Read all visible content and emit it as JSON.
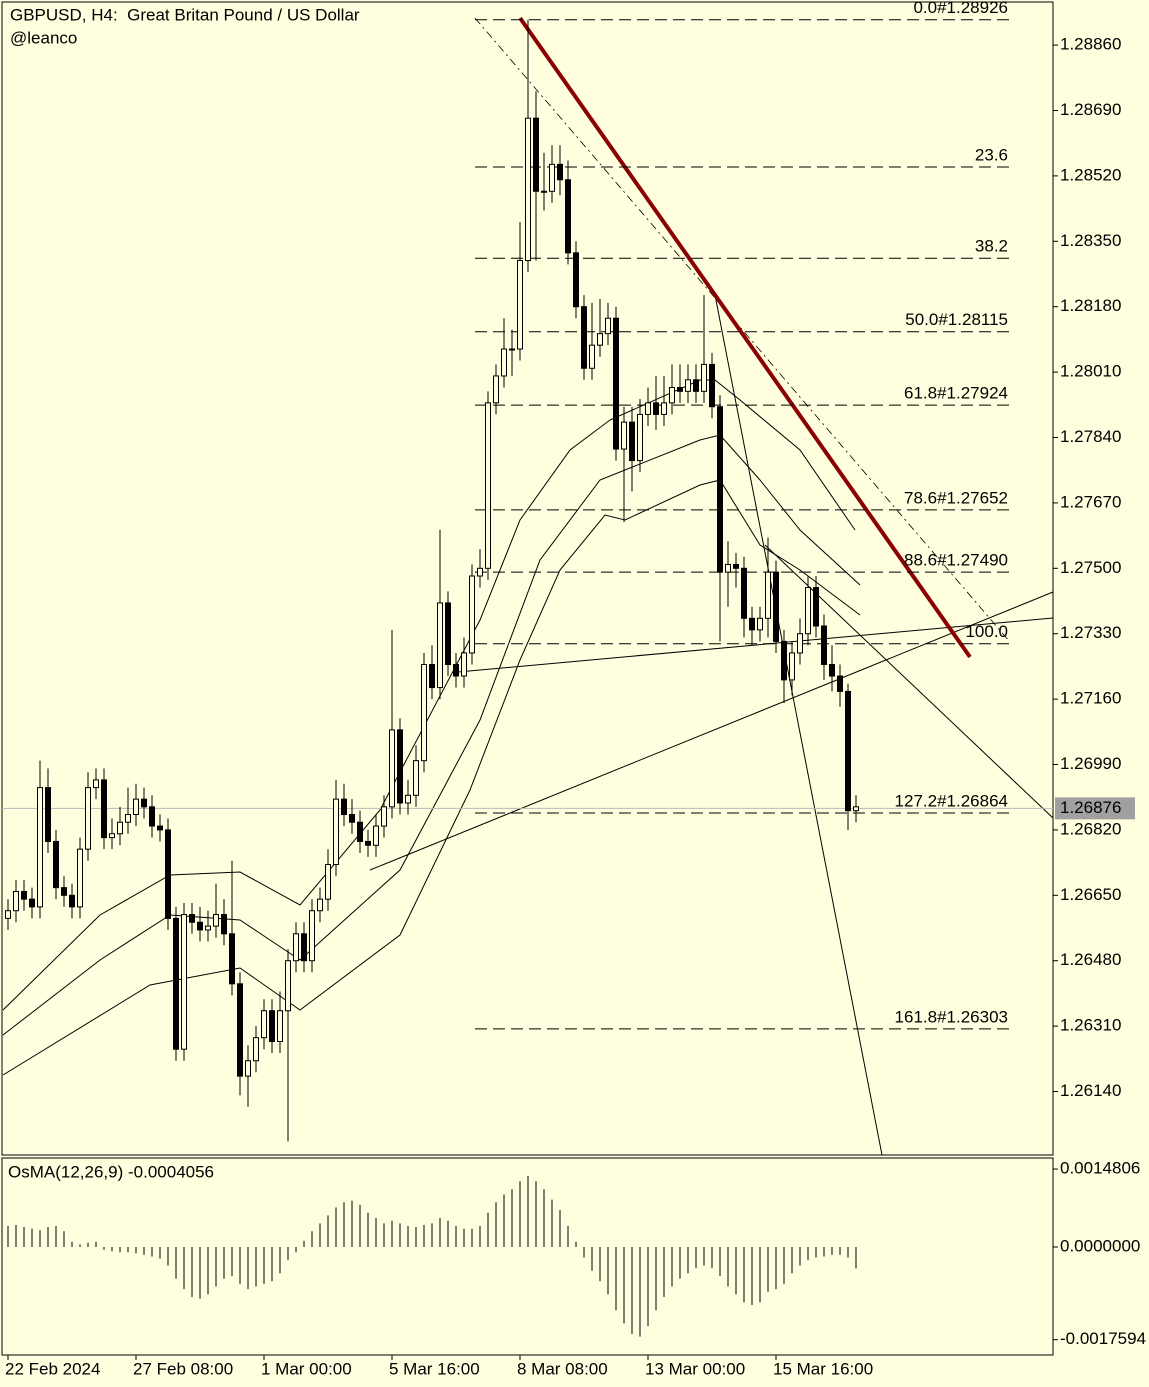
{
  "chart_data": [
    {
      "type": "candlestick",
      "title": "GBPUSD, H4:  Great Britan Pound / US Dollar",
      "subtitle": "@leanco",
      "color": "#000000",
      "background": "#ffffe0",
      "xlim": [
        -1,
        130
      ],
      "xticks": [
        {
          "value": 0,
          "label": "22 Feb 2024"
        },
        {
          "value": 16,
          "label": "27 Feb 08:00"
        },
        {
          "value": 32,
          "label": "1 Mar 00:00"
        },
        {
          "value": 48,
          "label": "5 Mar 16:00"
        },
        {
          "value": 64,
          "label": "8 Mar 08:00"
        },
        {
          "value": 80,
          "label": "13 Mar 00:00"
        },
        {
          "value": 96,
          "label": "15 Mar 16:00"
        }
      ],
      "ylim": [
        1.25975,
        1.28972
      ],
      "yticks": [
        {
          "value": 1.2886,
          "label": "1.28860"
        },
        {
          "value": 1.2869,
          "label": "1.28690"
        },
        {
          "value": 1.2852,
          "label": "1.28520"
        },
        {
          "value": 1.2835,
          "label": "1.28350"
        },
        {
          "value": 1.2818,
          "label": "1.28180"
        },
        {
          "value": 1.2801,
          "label": "1.28010"
        },
        {
          "value": 1.2784,
          "label": "1.27840"
        },
        {
          "value": 1.2767,
          "label": "1.27670"
        },
        {
          "value": 1.275,
          "label": "1.27500"
        },
        {
          "value": 1.2733,
          "label": "1.27330"
        },
        {
          "value": 1.2716,
          "label": "1.27160"
        },
        {
          "value": 1.2699,
          "label": "1.26990"
        },
        {
          "value": 1.2682,
          "label": "1.26820"
        },
        {
          "value": 1.2665,
          "label": "1.26650"
        },
        {
          "value": 1.2648,
          "label": "1.26480"
        },
        {
          "value": 1.2631,
          "label": "1.26310"
        },
        {
          "value": 1.2614,
          "label": "1.26140"
        }
      ],
      "bid": 1.26876,
      "open": [
        1.2659,
        1.2661,
        1.2666,
        1.2664,
        1.2662,
        1.2693,
        1.2679,
        1.2667,
        1.2665,
        1.2662,
        1.2677,
        1.2693,
        1.2695,
        1.268,
        1.2681,
        1.2684,
        1.2686,
        1.269,
        1.2688,
        1.2683,
        1.2682,
        1.2659,
        1.2625,
        1.266,
        1.2658,
        1.2656,
        1.2657,
        1.266,
        1.2655,
        1.2642,
        1.2618,
        1.2622,
        1.2628,
        1.2635,
        1.2627,
        1.2635,
        1.2648,
        1.2655,
        1.2648,
        1.2661,
        1.2664,
        1.2673,
        1.269,
        1.2686,
        1.2684,
        1.2679,
        1.2678,
        1.2683,
        1.2688,
        1.2708,
        1.2689,
        1.2691,
        1.27,
        1.2725,
        1.2719,
        1.2741,
        1.2725,
        1.2722,
        1.2728,
        1.2748,
        1.275,
        1.2793,
        1.28,
        1.2807,
        1.2807,
        1.283,
        1.2867,
        1.2848,
        1.2848,
        1.2855,
        1.2851,
        1.2832,
        1.2818,
        1.2802,
        1.2808,
        1.2811,
        1.2815,
        1.2781,
        1.2788,
        1.2778,
        1.279,
        1.2793,
        1.279,
        1.2793,
        1.2797,
        1.2796,
        1.2799,
        1.2796,
        1.2803,
        1.2792,
        1.2749,
        1.2751,
        1.275,
        1.2737,
        1.2734,
        1.2737,
        1.2749,
        1.2731,
        1.2721,
        1.2728,
        1.2733,
        1.2745,
        1.2735,
        1.2725,
        1.2722,
        1.2718,
        1.2687
      ],
      "high": [
        1.2664,
        1.2669,
        1.2669,
        1.2667,
        1.27,
        1.2698,
        1.2682,
        1.267,
        1.2668,
        1.268,
        1.2697,
        1.2698,
        1.2698,
        1.2685,
        1.2688,
        1.2693,
        1.2694,
        1.2693,
        1.2691,
        1.2686,
        1.2685,
        1.2662,
        1.2663,
        1.2663,
        1.2662,
        1.2661,
        1.2668,
        1.2664,
        1.2674,
        1.2645,
        1.2626,
        1.2631,
        1.2638,
        1.2638,
        1.264,
        1.2651,
        1.2658,
        1.2658,
        1.2664,
        1.2667,
        1.2677,
        1.2695,
        1.2694,
        1.269,
        1.2687,
        1.2682,
        1.2686,
        1.2691,
        1.2734,
        1.2711,
        1.2695,
        1.2704,
        1.2728,
        1.273,
        1.276,
        1.2744,
        1.2728,
        1.2732,
        1.2751,
        1.2755,
        1.2796,
        1.2803,
        1.2815,
        1.2812,
        1.284,
        1.28926,
        1.2874,
        1.2858,
        1.286,
        1.286,
        1.2856,
        1.2835,
        1.2821,
        1.2819,
        1.282,
        1.2819,
        1.2818,
        1.2792,
        1.2792,
        1.2794,
        1.2797,
        1.28,
        1.28,
        1.2803,
        1.2803,
        1.2803,
        1.2803,
        1.2821,
        1.2806,
        1.2795,
        1.2757,
        1.2754,
        1.2753,
        1.274,
        1.274,
        1.2758,
        1.2752,
        1.2734,
        1.2731,
        1.2737,
        1.2748,
        1.2748,
        1.2738,
        1.273,
        1.2725,
        1.272,
        1.2691
      ],
      "low": [
        1.2656,
        1.2658,
        1.2661,
        1.2659,
        1.2659,
        1.2676,
        1.2664,
        1.2662,
        1.2659,
        1.2659,
        1.2674,
        1.269,
        1.2677,
        1.2677,
        1.2678,
        1.2681,
        1.2683,
        1.2685,
        1.268,
        1.2679,
        1.2656,
        1.2622,
        1.2622,
        1.2655,
        1.2653,
        1.2653,
        1.2654,
        1.2652,
        1.2639,
        1.2613,
        1.261,
        1.2619,
        1.2625,
        1.2624,
        1.2624,
        1.2601,
        1.2645,
        1.2645,
        1.2645,
        1.2658,
        1.2661,
        1.267,
        1.2683,
        1.2681,
        1.2676,
        1.2675,
        1.2675,
        1.268,
        1.2685,
        1.2686,
        1.2686,
        1.2688,
        1.2697,
        1.2716,
        1.2716,
        1.2722,
        1.2719,
        1.2719,
        1.2725,
        1.2745,
        1.2747,
        1.279,
        1.2797,
        1.28,
        1.2804,
        1.2827,
        1.283,
        1.2843,
        1.2845,
        1.2847,
        1.2829,
        1.2815,
        1.2799,
        1.2799,
        1.2805,
        1.2808,
        1.2778,
        1.2762,
        1.277,
        1.2775,
        1.2787,
        1.2786,
        1.2787,
        1.279,
        1.2793,
        1.2793,
        1.2793,
        1.2793,
        1.2789,
        1.2731,
        1.274,
        1.2745,
        1.2732,
        1.273,
        1.2731,
        1.2732,
        1.2728,
        1.2715,
        1.2717,
        1.2725,
        1.273,
        1.2732,
        1.2721,
        1.2718,
        1.2714,
        1.2682,
        1.2684
      ],
      "close": [
        1.2661,
        1.2666,
        1.2664,
        1.2662,
        1.2693,
        1.2679,
        1.2667,
        1.2665,
        1.2662,
        1.2677,
        1.2693,
        1.2695,
        1.268,
        1.2681,
        1.2684,
        1.2686,
        1.269,
        1.2688,
        1.2683,
        1.2682,
        1.2659,
        1.2625,
        1.266,
        1.2658,
        1.2656,
        1.2657,
        1.266,
        1.2655,
        1.2642,
        1.2618,
        1.2622,
        1.2628,
        1.2635,
        1.2627,
        1.2635,
        1.2648,
        1.2655,
        1.2648,
        1.2661,
        1.2664,
        1.2673,
        1.269,
        1.2686,
        1.2684,
        1.2679,
        1.2678,
        1.2683,
        1.2688,
        1.2708,
        1.2689,
        1.2691,
        1.27,
        1.2725,
        1.2719,
        1.2741,
        1.2725,
        1.2722,
        1.2728,
        1.2748,
        1.275,
        1.2793,
        1.28,
        1.2807,
        1.2807,
        1.283,
        1.2867,
        1.2848,
        1.2848,
        1.2855,
        1.2851,
        1.2832,
        1.2818,
        1.2802,
        1.2808,
        1.2811,
        1.2815,
        1.2781,
        1.2788,
        1.2778,
        1.279,
        1.2793,
        1.279,
        1.2793,
        1.2797,
        1.2796,
        1.2799,
        1.2796,
        1.2803,
        1.2792,
        1.2749,
        1.2751,
        1.275,
        1.2737,
        1.2734,
        1.2737,
        1.2749,
        1.2731,
        1.2721,
        1.2728,
        1.2733,
        1.2745,
        1.2735,
        1.2725,
        1.2722,
        1.2718,
        1.2687,
        1.2688
      ],
      "fib_levels": [
        {
          "label": "0.0#1.28926",
          "price": 1.28926
        },
        {
          "label": "23.6",
          "price": 1.28543
        },
        {
          "label": "38.2",
          "price": 1.28306
        },
        {
          "label": "50.0#1.28115",
          "price": 1.28115
        },
        {
          "label": "61.8#1.27924",
          "price": 1.27924
        },
        {
          "label": "78.6#1.27652",
          "price": 1.27652
        },
        {
          "label": "88.6#1.27490",
          "price": 1.2749
        },
        {
          "label": "100.0",
          "price": 1.27304
        },
        {
          "label": "127.2#1.26864",
          "price": 1.26864
        },
        {
          "label": "161.8#1.26303",
          "price": 1.26303
        }
      ]
    },
    {
      "type": "bar",
      "title": "OsMA(12,26,9) -0.0004056",
      "color": "#000000",
      "ylim": [
        -0.00205,
        0.00169
      ],
      "yticks": [
        0.0014806,
        {
          "value": 0,
          "label": "0.0000000"
        },
        -0.0017594
      ],
      "values": [
        0.0004,
        0.00042,
        0.00038,
        0.00035,
        0.00032,
        0.00038,
        0.0004,
        0.0003,
        0.0001,
        5e-05,
        8e-05,
        0.0001,
        -5e-05,
        -8e-05,
        -0.0001,
        -0.0001,
        -0.00012,
        -0.00015,
        -0.00018,
        -0.00022,
        -0.00035,
        -0.0006,
        -0.0008,
        -0.00095,
        -0.00098,
        -0.0009,
        -0.00075,
        -0.0006,
        -0.00055,
        -0.0007,
        -0.0008,
        -0.00075,
        -0.0007,
        -0.00065,
        -0.0005,
        -0.00025,
        -0.0001,
        0.00012,
        0.0003,
        0.00045,
        0.0006,
        0.00075,
        0.00085,
        0.00088,
        0.0008,
        0.00065,
        0.00055,
        0.00045,
        0.0005,
        0.00045,
        0.0004,
        0.00038,
        0.00042,
        0.00045,
        0.00055,
        0.0005,
        0.0004,
        0.00035,
        0.00035,
        0.0004,
        0.00065,
        0.00085,
        0.001,
        0.0011,
        0.00125,
        0.00135,
        0.00125,
        0.0011,
        0.0009,
        0.0007,
        0.0004,
        0.0001,
        -0.0002,
        -0.00045,
        -0.00065,
        -0.0009,
        -0.0012,
        -0.00145,
        -0.00165,
        -0.0017,
        -0.0015,
        -0.0012,
        -0.00095,
        -0.00075,
        -0.0006,
        -0.0005,
        -0.0004,
        -0.00035,
        -0.0004,
        -0.00055,
        -0.00075,
        -0.0009,
        -0.00105,
        -0.0011,
        -0.00105,
        -0.00085,
        -0.0008,
        -0.0007,
        -0.0005,
        -0.00035,
        -0.00025,
        -0.0002,
        -0.00018,
        -0.00015,
        -0.00015,
        -0.0002,
        -0.0004056
      ]
    }
  ]
}
